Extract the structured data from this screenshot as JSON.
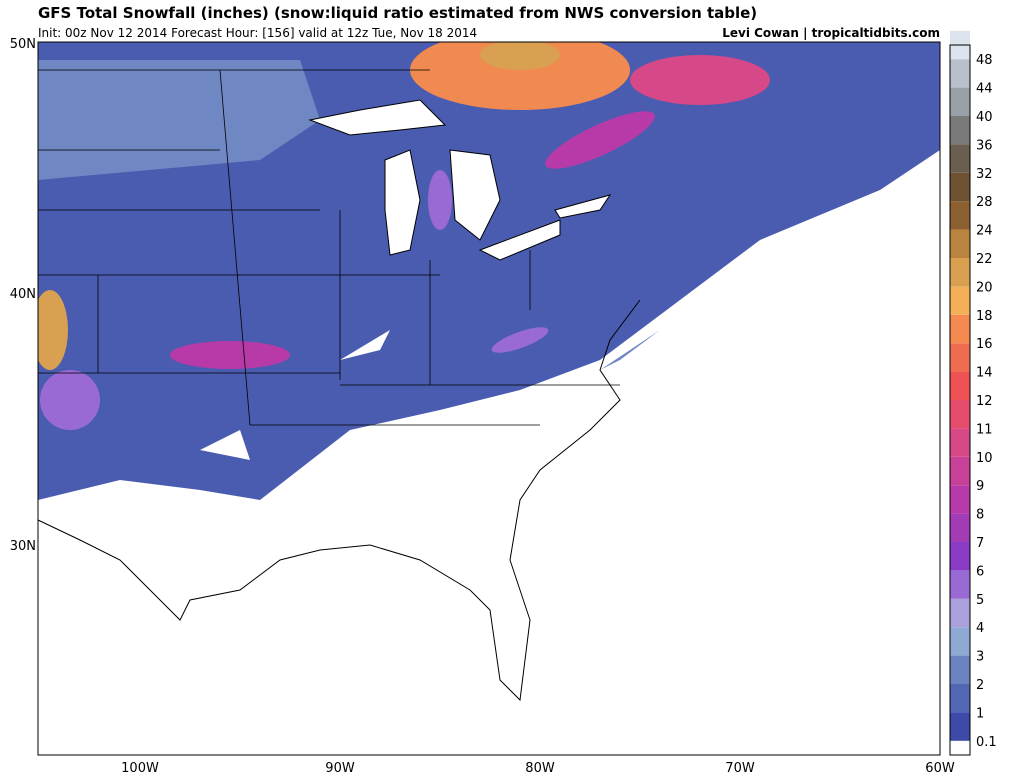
{
  "header": {
    "title": "GFS Total Snowfall (inches) (snow:liquid ratio estimated from NWS conversion table)",
    "subtitle": "Init: 00z Nov 12 2014 Forecast Hour: [156] valid at 12z Tue, Nov 18 2014",
    "credit": "Levi Cowan | tropicaltidbits.com"
  },
  "map": {
    "lat_labels": [
      "50N",
      "40N",
      "30N"
    ],
    "lon_labels": [
      "100W",
      "90W",
      "80W",
      "70W",
      "60W"
    ]
  },
  "colorbar": {
    "labels": [
      0.1,
      1,
      2,
      3,
      4,
      5,
      6,
      7,
      8,
      9,
      10,
      11,
      12,
      14,
      16,
      18,
      20,
      22,
      24,
      28,
      32,
      36,
      40,
      44,
      48
    ],
    "colors": [
      "#3d4aa8",
      "#5266b4",
      "#6b84c0",
      "#8eaad4",
      "#a9a0dc",
      "#9a6ad4",
      "#8a3cc4",
      "#a23cb4",
      "#b83aa8",
      "#c84098",
      "#d64888",
      "#e44c6c",
      "#ee5252",
      "#f06c50",
      "#f48a50",
      "#f4b058",
      "#d8a050",
      "#b88440",
      "#8c6030",
      "#6e5232",
      "#6a5e50",
      "#7a7a7a",
      "#9aa0a8",
      "#b8c0cc",
      "#dde4ee"
    ]
  }
}
